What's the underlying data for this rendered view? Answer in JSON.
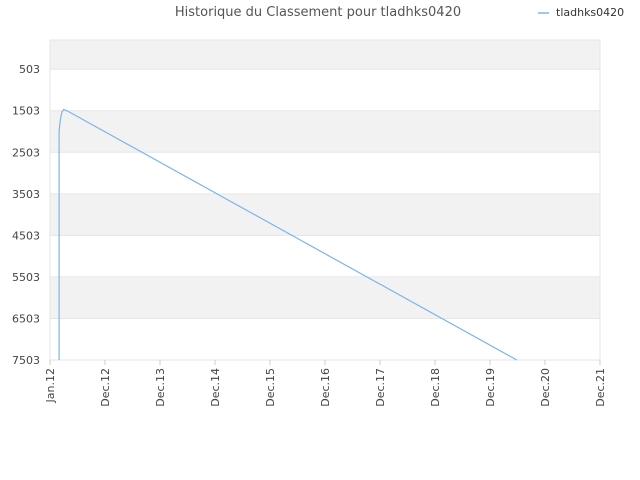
{
  "chart_data": {
    "type": "line",
    "title": "Historique du Classement pour tladhks0420",
    "xlabel": "",
    "ylabel": "",
    "x_tick_labels": [
      "Jan.12",
      "Dec.12",
      "Dec.13",
      "Dec.14",
      "Dec.15",
      "Dec.16",
      "Dec.17",
      "Dec.18",
      "Dec.19",
      "Dec.20",
      "Dec.21"
    ],
    "y_tick_labels": [
      "503",
      "1503",
      "2503",
      "3503",
      "4503",
      "5503",
      "6503",
      "7503"
    ],
    "y_ticks": [
      503,
      1503,
      2503,
      3503,
      4503,
      5503,
      6503,
      7503
    ],
    "ylim": [
      7503,
      -200
    ],
    "y_inverted": true,
    "grid": true,
    "legend_position": "top-right",
    "series": [
      {
        "name": "tladhks0420",
        "color": "#7cb5ec",
        "points": [
          {
            "x": "2012-03-01",
            "y": 7503
          },
          {
            "x": "2012-03-01",
            "y": 2000
          },
          {
            "x": "2012-03-05",
            "y": 1850
          },
          {
            "x": "2012-03-12",
            "y": 1650
          },
          {
            "x": "2012-03-20",
            "y": 1530
          },
          {
            "x": "2012-04-01",
            "y": 1470
          },
          {
            "x": "2012-05-01",
            "y": 1520
          },
          {
            "x": "2020-06-01",
            "y": 7503
          }
        ]
      }
    ]
  },
  "colors": {
    "band_shade": "#f2f2f2",
    "grid_line": "#e6e6e6",
    "series_line": "#7cb5ec"
  }
}
